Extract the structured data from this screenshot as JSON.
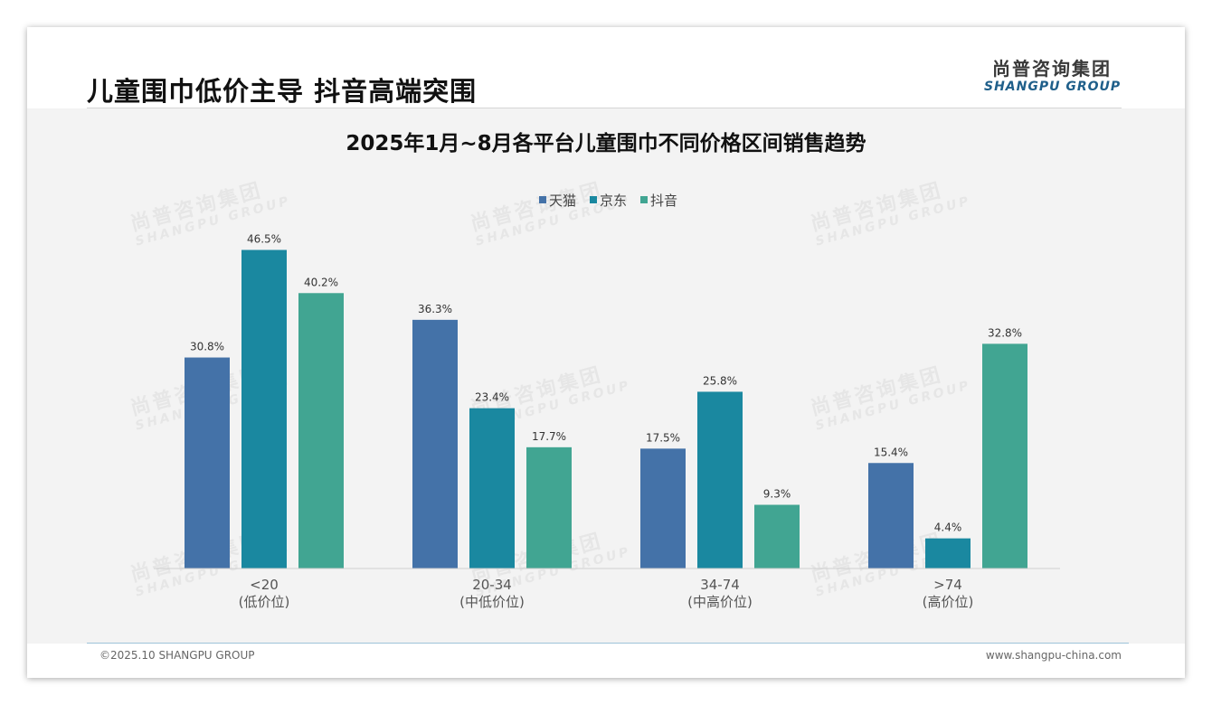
{
  "header": {
    "title": "儿童围巾低价主导 抖音高端突围",
    "logo_cn": "尚普咨询集团",
    "logo_en": "SHANGPU GROUP"
  },
  "watermark": {
    "cn": "尚普咨询集团",
    "en": "SHANGPU GROUP"
  },
  "footer": {
    "copyright": "©2025.10 SHANGPU GROUP",
    "website": "www.shangpu-china.com"
  },
  "chart_data": {
    "type": "bar",
    "title": "2025年1月~8月各平台儿童围巾不同价格区间销售趋势",
    "categories": [
      [
        "<20",
        "(低价位)"
      ],
      [
        "20-34",
        "(中低价位)"
      ],
      [
        "34-74",
        "(中高价位)"
      ],
      [
        ">74",
        "(高价位)"
      ]
    ],
    "series": [
      {
        "name": "天猫",
        "color": "#4472a8",
        "values": [
          30.8,
          36.3,
          17.5,
          15.4
        ]
      },
      {
        "name": "京东",
        "color": "#1a88a0",
        "values": [
          46.5,
          23.4,
          25.8,
          4.4
        ]
      },
      {
        "name": "抖音",
        "color": "#41a592",
        "values": [
          40.2,
          17.7,
          9.3,
          32.8
        ]
      }
    ],
    "value_format": "%",
    "ylim": [
      0,
      50
    ],
    "grid": false,
    "legend": "top-center",
    "xlabel": "",
    "ylabel": ""
  }
}
